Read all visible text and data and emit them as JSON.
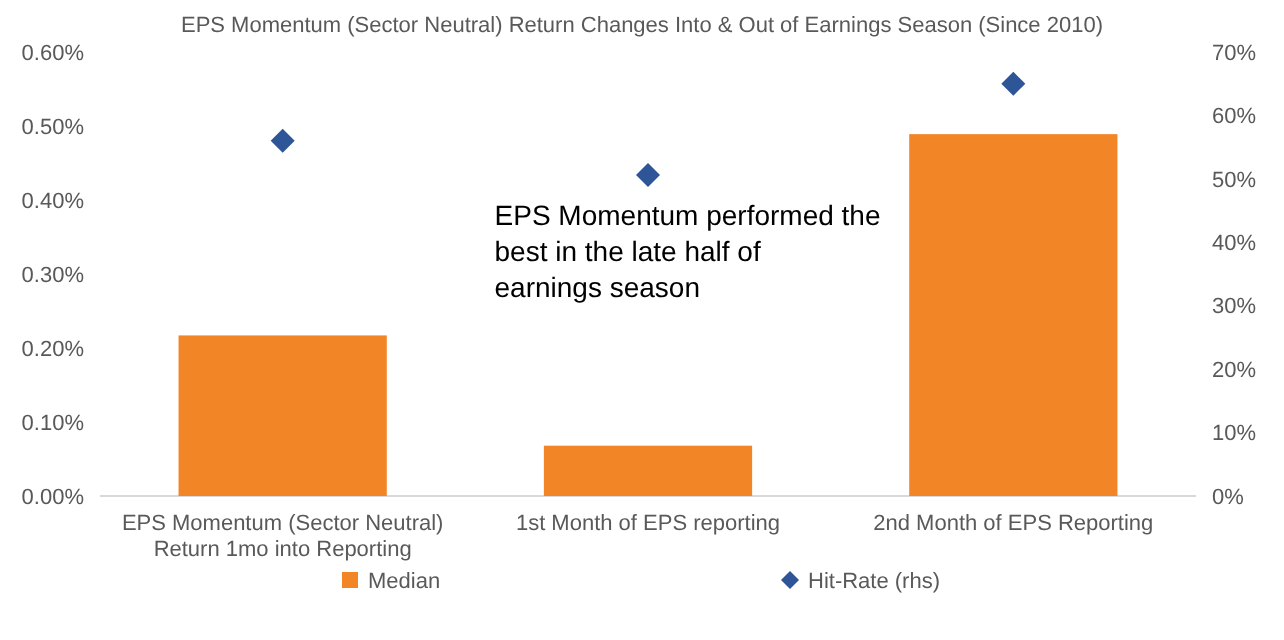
{
  "chart_data": {
    "type": "bar",
    "title": "EPS Momentum (Sector Neutral) Return Changes Into & Out of Earnings Season (Since 2010)",
    "categories": [
      "EPS Momentum (Sector Neutral) Return 1mo into Reporting",
      "1st Month of EPS reporting",
      "2nd Month of EPS Reporting"
    ],
    "series": [
      {
        "name": "Median",
        "color": "#f28526",
        "values": [
          0.217,
          0.068,
          0.489
        ]
      },
      {
        "name": "Hit-Rate (rhs)",
        "type": "scatter",
        "axis": "y2",
        "color": "#2e5597",
        "values": [
          56,
          50.6,
          65
        ]
      }
    ],
    "ylim": [
      0,
      0.6
    ],
    "yticks": [
      {
        "value": 0,
        "label": "0.00%"
      },
      {
        "value": 0.1,
        "label": "0.10%"
      },
      {
        "value": 0.2,
        "label": "0.20%"
      },
      {
        "value": 0.3,
        "label": "0.30%"
      },
      {
        "value": 0.4,
        "label": "0.40%"
      },
      {
        "value": 0.5,
        "label": "0.50%"
      },
      {
        "value": 0.6,
        "label": "0.60%"
      }
    ],
    "y2lim": [
      0,
      70
    ],
    "y2ticks": [
      {
        "value": 0,
        "label": "0%"
      },
      {
        "value": 10,
        "label": "10%"
      },
      {
        "value": 20,
        "label": "20%"
      },
      {
        "value": 30,
        "label": "30%"
      },
      {
        "value": 40,
        "label": "40%"
      },
      {
        "value": 50,
        "label": "50%"
      },
      {
        "value": 60,
        "label": "60%"
      },
      {
        "value": 70,
        "label": "70%"
      }
    ],
    "marker": "diamond",
    "grid": false,
    "legend": "bottom",
    "annotations": [
      "EPS Momentum performed the best in the late half of earnings season"
    ]
  }
}
